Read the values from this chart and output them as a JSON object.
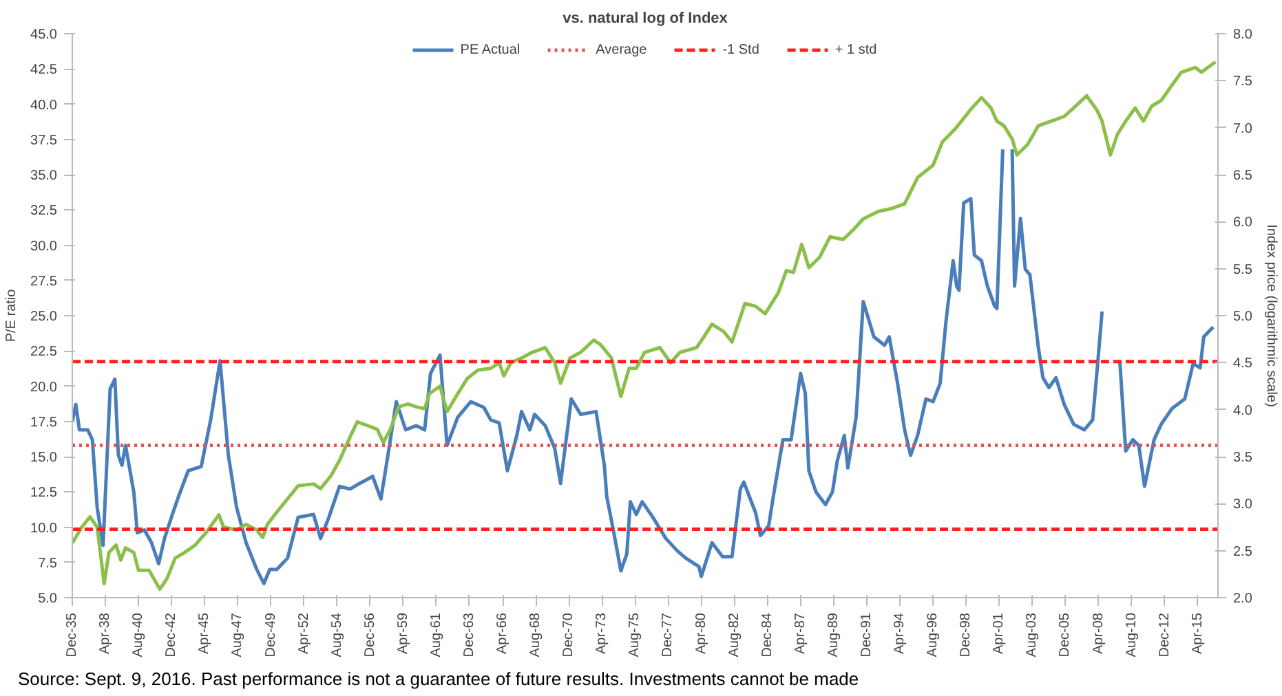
{
  "chart_data": {
    "type": "line",
    "title": "vs. natural log of Index",
    "ylabel": "P/E ratio",
    "y2label": "Index price (logarithmic scale)",
    "annotations": [
      "Source: Sept. 9, 2016. Past performance is not a guarantee of future results. Investments cannot be made"
    ],
    "xlim": [
      "1935-12",
      "2016-09"
    ],
    "ylim": [
      5,
      45
    ],
    "y2lim": [
      2,
      8
    ],
    "xticks": [
      {
        "value": "1935-12",
        "label": "Dec-35"
      },
      {
        "value": "1938-04",
        "label": "Apr-38"
      },
      {
        "value": "1940-08",
        "label": "Aug-40"
      },
      {
        "value": "1942-12",
        "label": "Dec-42"
      },
      {
        "value": "1945-04",
        "label": "Apr-45"
      },
      {
        "value": "1947-08",
        "label": "Aug-47"
      },
      {
        "value": "1949-12",
        "label": "Dec-49"
      },
      {
        "value": "1952-04",
        "label": "Apr-52"
      },
      {
        "value": "1954-08",
        "label": "Aug-54"
      },
      {
        "value": "1956-12",
        "label": "Dec-56"
      },
      {
        "value": "1959-04",
        "label": "Apr-59"
      },
      {
        "value": "1961-08",
        "label": "Aug-61"
      },
      {
        "value": "1963-12",
        "label": "Dec-63"
      },
      {
        "value": "1966-04",
        "label": "Apr-66"
      },
      {
        "value": "1968-08",
        "label": "Aug-68"
      },
      {
        "value": "1970-12",
        "label": "Dec-70"
      },
      {
        "value": "1973-04",
        "label": "Apr-73"
      },
      {
        "value": "1975-08",
        "label": "Aug-75"
      },
      {
        "value": "1977-12",
        "label": "Dec-77"
      },
      {
        "value": "1980-04",
        "label": "Apr-80"
      },
      {
        "value": "1982-08",
        "label": "Aug-82"
      },
      {
        "value": "1984-12",
        "label": "Dec-84"
      },
      {
        "value": "1987-04",
        "label": "Apr-87"
      },
      {
        "value": "1989-08",
        "label": "Aug-89"
      },
      {
        "value": "1991-12",
        "label": "Dec-91"
      },
      {
        "value": "1994-04",
        "label": "Apr-94"
      },
      {
        "value": "1996-08",
        "label": "Aug-96"
      },
      {
        "value": "1998-12",
        "label": "Dec-98"
      },
      {
        "value": "2001-04",
        "label": "Apr-01"
      },
      {
        "value": "2003-08",
        "label": "Aug-03"
      },
      {
        "value": "2005-12",
        "label": "Dec-05"
      },
      {
        "value": "2008-04",
        "label": "Apr-08"
      },
      {
        "value": "2010-08",
        "label": "Aug-10"
      },
      {
        "value": "2012-12",
        "label": "Dec-12"
      },
      {
        "value": "2015-04",
        "label": "Apr-15"
      }
    ],
    "yticks": [
      {
        "value": 5,
        "label": "5.0"
      },
      7.5,
      {
        "value": 10,
        "label": "10.0"
      },
      12.5,
      {
        "value": 15,
        "label": "15.0"
      },
      17.5,
      {
        "value": 20,
        "label": "20.0"
      },
      22.5,
      {
        "value": 25,
        "label": "25.0"
      },
      27.5,
      {
        "value": 30,
        "label": "30.0"
      },
      32.5,
      {
        "value": 35,
        "label": "35.0"
      },
      37.5,
      {
        "value": 40,
        "label": "40.0"
      },
      42.5,
      {
        "value": 45,
        "label": "45.0"
      }
    ],
    "y2ticks": [
      {
        "value": 2,
        "label": "2.0"
      },
      2.5,
      {
        "value": 3,
        "label": "3.0"
      },
      3.5,
      {
        "value": 4,
        "label": "4.0"
      },
      4.5,
      {
        "value": 5,
        "label": "5.0"
      },
      5.5,
      {
        "value": 6,
        "label": "6.0"
      },
      6.5,
      {
        "value": 7,
        "label": "7.0"
      },
      7.5,
      {
        "value": 8,
        "label": "8.0"
      }
    ],
    "grid": false,
    "legend": "top",
    "marker": "none",
    "line_style": "solid",
    "series": [
      {
        "name": "PE Actual",
        "color": "#4a7ebb",
        "x": [
          "1935-12",
          "1936-03",
          "1936-06",
          "1937-01",
          "1937-05",
          "1937-09",
          "1938-02",
          "1938-08",
          "1938-12",
          "1939-03",
          "1939-06",
          "1939-09",
          "1940-04",
          "1940-07",
          "1941-01",
          "1941-07",
          "1942-01",
          "1942-06",
          "1943-01",
          "1943-06",
          "1944-02",
          "1945-01",
          "1945-09",
          "1946-05",
          "1946-12",
          "1947-07",
          "1948-03",
          "1948-12",
          "1949-06",
          "1949-11",
          "1950-05",
          "1951-02",
          "1951-11",
          "1952-12",
          "1953-06",
          "1954-01",
          "1954-10",
          "1955-07",
          "1956-03",
          "1957-02",
          "1957-09",
          "1958-03",
          "1958-10",
          "1959-06",
          "1960-03",
          "1960-10",
          "1961-03",
          "1961-11",
          "1962-05",
          "1963-02",
          "1964-01",
          "1964-12",
          "1965-06",
          "1966-01",
          "1966-08",
          "1967-04",
          "1967-08",
          "1968-03",
          "1968-07",
          "1969-04",
          "1969-12",
          "1970-05",
          "1970-10",
          "1971-02",
          "1971-10",
          "1972-11",
          "1973-06",
          "1973-08",
          "1974-02",
          "1974-08",
          "1975-01",
          "1975-04",
          "1975-09",
          "1976-02",
          "1976-11",
          "1977-10",
          "1978-08",
          "1979-03",
          "1980-02",
          "1980-04",
          "1981-01",
          "1981-10",
          "1982-06",
          "1983-01",
          "1983-04",
          "1984-02",
          "1984-06",
          "1985-01",
          "1985-05",
          "1986-01",
          "1986-08",
          "1987-04",
          "1987-08",
          "1987-11",
          "1988-05",
          "1989-01",
          "1989-07",
          "1989-11",
          "1990-05",
          "1990-08",
          "1991-03",
          "1991-09",
          "1992-06",
          "1993-03",
          "1993-07",
          "1994-02",
          "1994-08",
          "1995-01",
          "1995-07",
          "1996-02",
          "1996-08",
          "1997-02",
          "1997-07",
          "1998-01",
          "1998-04",
          "1998-06",
          "1998-10",
          "1999-04",
          "1999-07",
          "2000-01",
          "2000-06",
          "2000-12",
          "2001-02",
          "2001-07",
          "2001-11",
          "2002-03",
          "2002-05",
          "2002-10",
          "2003-02",
          "2003-06",
          "2004-01",
          "2004-05",
          "2004-10",
          "2005-04",
          "2005-11",
          "2006-07",
          "2007-04",
          "2007-11",
          "2008-03",
          "2008-07",
          "2009-01",
          "2009-10",
          "2010-03",
          "2010-09",
          "2011-02",
          "2011-07",
          "2012-03",
          "2012-09",
          "2013-06",
          "2014-05",
          "2014-12",
          "2015-06",
          "2015-09",
          "2016-05"
        ],
        "values": [
          17.5,
          18.7,
          16.9,
          16.9,
          16.2,
          11.4,
          8.7,
          19.8,
          20.5,
          15.1,
          14.4,
          15.8,
          12.5,
          9.6,
          9.8,
          8.9,
          7.4,
          9.2,
          11.0,
          12.2,
          14.0,
          14.3,
          17.6,
          21.8,
          15.1,
          11.4,
          8.9,
          7.0,
          6.0,
          7.0,
          7.0,
          7.8,
          10.7,
          10.9,
          9.2,
          10.7,
          12.9,
          12.7,
          13.1,
          13.6,
          12.0,
          15.1,
          18.9,
          16.9,
          17.2,
          16.9,
          20.9,
          22.2,
          15.8,
          17.8,
          18.9,
          18.5,
          17.6,
          17.4,
          14.0,
          16.5,
          18.2,
          16.9,
          18.0,
          17.2,
          15.6,
          13.1,
          16.4,
          19.1,
          18.0,
          18.2,
          14.4,
          12.2,
          9.6,
          6.9,
          8.1,
          11.8,
          10.9,
          11.8,
          10.7,
          9.2,
          8.3,
          7.8,
          7.2,
          6.5,
          8.9,
          7.9,
          7.9,
          12.7,
          13.2,
          11.0,
          9.4,
          10.1,
          12.2,
          16.2,
          16.2,
          20.9,
          19.5,
          14.0,
          12.5,
          11.6,
          12.5,
          14.7,
          16.5,
          14.2,
          17.8,
          26.0,
          23.5,
          22.9,
          23.5,
          20.2,
          16.9,
          15.1,
          16.5,
          19.1,
          18.9,
          20.2,
          24.6,
          28.9,
          27.1,
          26.8,
          33.0,
          33.3,
          29.3,
          28.9,
          27.1,
          25.7,
          25.5,
          36.8,
          null,
          36.8,
          27.1,
          31.9,
          28.3,
          27.9,
          22.8,
          20.6,
          19.9,
          20.6,
          18.7,
          17.3,
          16.9,
          17.6,
          21.3,
          25.3,
          null,
          21.8,
          15.4,
          16.2,
          15.8,
          12.9,
          16.2,
          17.3,
          18.4,
          19.1,
          21.6,
          21.3,
          23.5,
          24.2
        ]
      },
      {
        "color": "#8cbf4a",
        "axis": "y2",
        "x": [
          "1935-12",
          "1936-08",
          "1937-03",
          "1937-09",
          "1938-03",
          "1938-07",
          "1939-01",
          "1939-05",
          "1939-09",
          "1940-04",
          "1940-08",
          "1941-05",
          "1942-02",
          "1942-08",
          "1943-03",
          "1943-11",
          "1944-08",
          "1945-05",
          "1946-04",
          "1946-08",
          "1947-07",
          "1948-03",
          "1948-12",
          "1949-05",
          "1949-09",
          "1950-05",
          "1951-02",
          "1951-11",
          "1952-12",
          "1953-06",
          "1954-03",
          "1954-10",
          "1955-07",
          "1956-01",
          "1956-12",
          "1957-06",
          "1957-11",
          "1958-05",
          "1958-12",
          "1959-08",
          "1960-03",
          "1960-10",
          "1961-02",
          "1961-11",
          "1962-05",
          "1963-02",
          "1963-10",
          "1964-07",
          "1965-06",
          "1966-01",
          "1966-05",
          "1966-11",
          "1967-08",
          "1968-05",
          "1969-04",
          "1969-12",
          "1970-05",
          "1971-01",
          "1971-10",
          "1972-09",
          "1973-03",
          "1973-12",
          "1974-08",
          "1975-03",
          "1975-09",
          "1976-04",
          "1977-05",
          "1978-02",
          "1978-10",
          "1979-12",
          "1980-06",
          "1981-01",
          "1981-11",
          "1982-06",
          "1983-05",
          "1984-02",
          "1984-10",
          "1985-09",
          "1986-04",
          "1986-10",
          "1987-05",
          "1987-11",
          "1988-08",
          "1989-05",
          "1990-04",
          "1991-01",
          "1991-09",
          "1992-10",
          "1993-09",
          "1994-08",
          "1995-07",
          "1996-08",
          "1997-04",
          "1998-03",
          "1999-05",
          "2000-01",
          "2000-09",
          "2001-02",
          "2001-08",
          "2002-03",
          "2002-07",
          "2003-04",
          "2004-01",
          "2004-12",
          "2005-11",
          "2006-07",
          "2007-06",
          "2008-03",
          "2008-07",
          "2009-02",
          "2009-08",
          "2010-03",
          "2010-11",
          "2011-06",
          "2012-01",
          "2012-09",
          "2013-06",
          "2014-02",
          "2015-02",
          "2015-07",
          "2016-07"
        ],
        "values": [
          2.58,
          2.75,
          2.86,
          2.75,
          2.15,
          2.48,
          2.56,
          2.4,
          2.53,
          2.48,
          2.29,
          2.29,
          2.09,
          2.2,
          2.42,
          2.48,
          2.56,
          2.69,
          2.88,
          2.75,
          2.72,
          2.78,
          2.72,
          2.64,
          2.78,
          2.91,
          3.05,
          3.19,
          3.21,
          3.16,
          3.3,
          3.46,
          3.71,
          3.87,
          3.82,
          3.79,
          3.65,
          3.79,
          4.03,
          4.06,
          4.03,
          4.01,
          4.17,
          4.25,
          3.98,
          4.17,
          4.33,
          4.42,
          4.44,
          4.5,
          4.36,
          4.5,
          4.55,
          4.61,
          4.66,
          4.5,
          4.28,
          4.55,
          4.61,
          4.74,
          4.69,
          4.55,
          4.14,
          4.44,
          4.44,
          4.61,
          4.66,
          4.5,
          4.61,
          4.66,
          4.77,
          4.91,
          4.83,
          4.72,
          5.13,
          5.1,
          5.02,
          5.24,
          5.48,
          5.46,
          5.76,
          5.51,
          5.62,
          5.84,
          5.81,
          5.92,
          6.03,
          6.11,
          6.14,
          6.19,
          6.47,
          6.6,
          6.85,
          6.99,
          7.21,
          7.32,
          7.21,
          7.07,
          7.02,
          6.88,
          6.71,
          6.82,
          7.02,
          7.07,
          7.12,
          7.21,
          7.34,
          7.18,
          7.07,
          6.71,
          6.93,
          7.07,
          7.21,
          7.07,
          7.23,
          7.29,
          7.45,
          7.59,
          7.64,
          7.59,
          7.7
        ]
      }
    ],
    "ref_lines": [
      {
        "axis": "y",
        "value": 15.8,
        "label": "Average",
        "color": "#e05555",
        "line_style": "dotted"
      },
      {
        "axis": "y",
        "value": 9.85,
        "label": "-1 Std",
        "color": "#ff2020",
        "line_style": "dashed"
      },
      {
        "axis": "y",
        "value": 21.75,
        "label": "+ 1 std",
        "color": "#ff2020",
        "line_style": "dashed"
      }
    ]
  }
}
